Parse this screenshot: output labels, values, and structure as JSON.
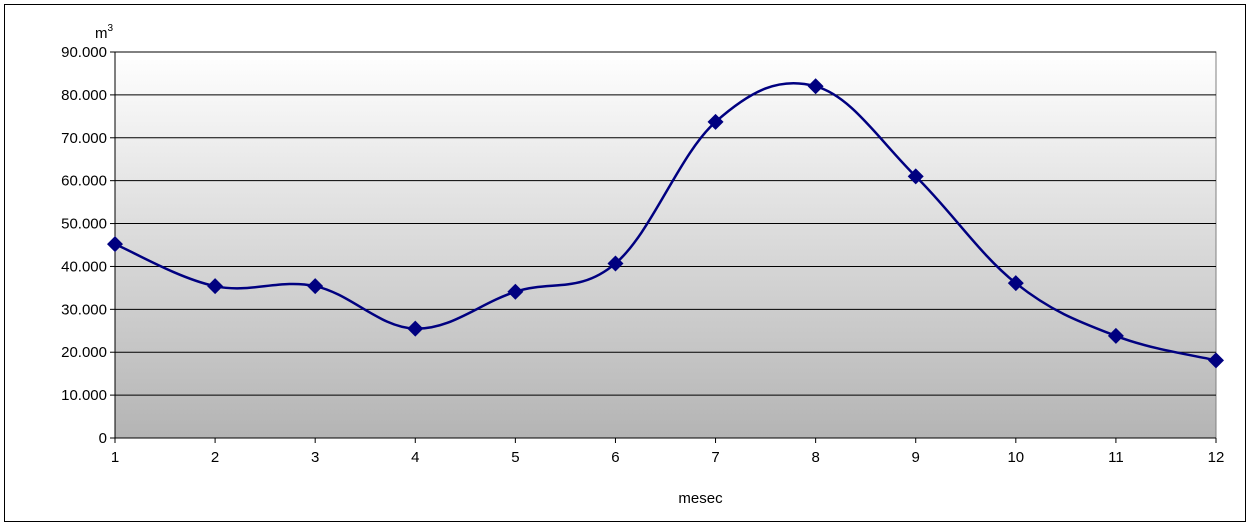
{
  "chart_data": {
    "type": "line",
    "x": [
      1,
      2,
      3,
      4,
      5,
      6,
      7,
      8,
      9,
      10,
      11,
      12
    ],
    "series": [
      {
        "values": [
          45200,
          35400,
          35400,
          25500,
          34100,
          40700,
          73700,
          82000,
          61000,
          36100,
          23800,
          18100
        ]
      }
    ],
    "xlabel": "mesec",
    "ylabel_base": "m",
    "ylabel_sup": "3",
    "ylim": [
      0,
      90000
    ],
    "y_ticks": [
      0,
      10000,
      20000,
      30000,
      40000,
      50000,
      60000,
      70000,
      80000,
      90000
    ],
    "y_tick_labels": [
      "0",
      "10.000",
      "20.000",
      "30.000",
      "40.000",
      "50.000",
      "60.000",
      "70.000",
      "80.000",
      "90.000"
    ],
    "x_tick_labels": [
      "1",
      "2",
      "3",
      "4",
      "5",
      "6",
      "7",
      "8",
      "9",
      "10",
      "11",
      "12"
    ],
    "smooth": true,
    "grid": "horizontal",
    "legend": "none",
    "colors": {
      "line": "#000080",
      "marker": "#000080",
      "plot_bg_top": "#ffffff",
      "plot_bg_bottom": "#b4b4b4",
      "grid": "#000000"
    }
  }
}
